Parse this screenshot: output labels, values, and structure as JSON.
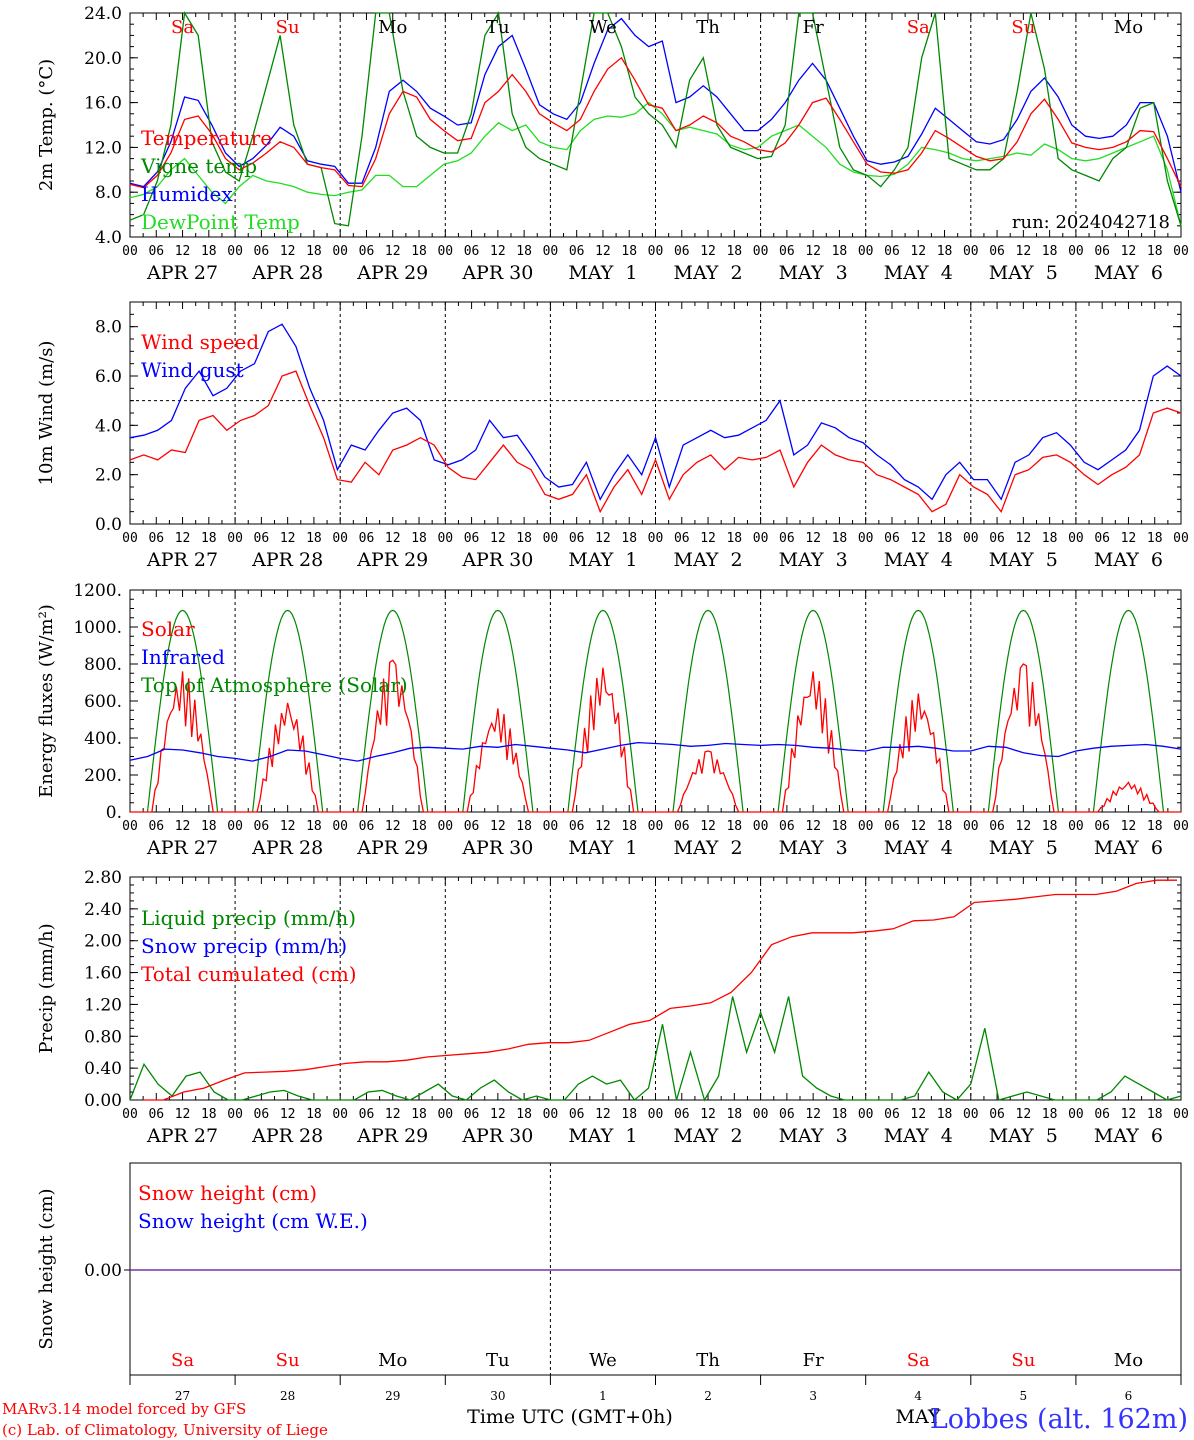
{
  "colors": {
    "red": "#ff0000",
    "green": "#008800",
    "blue": "#0000ff",
    "lightgreen": "#22dd22",
    "purple": "#7733aa"
  },
  "days": {
    "weekdays": [
      "Sa",
      "Su",
      "Mo",
      "Tu",
      "We",
      "Th",
      "Fr",
      "Sa",
      "Su",
      "Mo"
    ],
    "weekday_colors": [
      "red",
      "red",
      "black",
      "black",
      "black",
      "black",
      "black",
      "red",
      "red",
      "black"
    ],
    "dates": [
      "APR 27",
      "APR 28",
      "APR 29",
      "APR 30",
      "MAY  1",
      "MAY  2",
      "MAY  3",
      "MAY  4",
      "MAY  5",
      "MAY  6"
    ],
    "hour_ticks": [
      "00",
      "06",
      "12",
      "18"
    ],
    "final_tick": "00",
    "day_numbers": [
      "27",
      "28",
      "29",
      "30",
      "1",
      "2",
      "3",
      "4",
      "5",
      "6"
    ]
  },
  "footer": {
    "model": "MARv3.14 model forced by GFS",
    "lab": "(c) Lab. of Climatology, University of Liege",
    "xlabel": "Time UTC (GMT+0h)",
    "month": "MAY",
    "station": "Lobbes (alt. 162m)"
  },
  "chart_data": [
    {
      "type": "line",
      "ylabel": "2m Temp. (°C)",
      "ylim": [
        4.0,
        24.0
      ],
      "yticks": [
        "4.0",
        "8.0",
        "12.0",
        "16.0",
        "20.0",
        "24.0"
      ],
      "annotation": "run: 2024042718",
      "x_unit": "3-hourly steps from APR 27 00 UTC to MAY 7 00 UTC",
      "series": [
        {
          "name": "Temperature",
          "color": "red",
          "values": [
            8.7,
            8.4,
            9.5,
            11.5,
            14.5,
            14.8,
            13.2,
            11.0,
            10.0,
            10.6,
            11.5,
            12.5,
            12.0,
            10.5,
            10.2,
            10.0,
            8.6,
            8.5,
            11.0,
            15.0,
            17.0,
            16.5,
            14.5,
            13.5,
            12.6,
            12.8,
            16.0,
            17.0,
            18.5,
            17.0,
            15.0,
            14.2,
            13.5,
            14.5,
            17.0,
            19.0,
            20.0,
            18.0,
            15.8,
            15.5,
            13.5,
            14.0,
            14.8,
            14.2,
            13.0,
            12.5,
            11.8,
            11.6,
            12.4,
            14.0,
            16.0,
            16.4,
            14.5,
            12.5,
            10.5,
            9.8,
            9.7,
            10.0,
            11.5,
            13.5,
            12.8,
            12.0,
            11.2,
            10.8,
            11.0,
            12.5,
            15.0,
            16.3,
            14.5,
            12.4,
            12.0,
            11.8,
            12.0,
            12.5,
            13.5,
            13.4,
            11.0,
            8.5
          ]
        },
        {
          "name": "Vigne temp",
          "color": "green",
          "values": [
            5.5,
            6.0,
            9.0,
            14.0,
            24.0,
            22.0,
            12.5,
            9.8,
            9.0,
            13.0,
            17.5,
            22.0,
            14.0,
            10.5,
            10.2,
            5.2,
            5.0,
            13.0,
            24.0,
            24.0,
            17.0,
            13.0,
            12.0,
            11.5,
            11.5,
            15.0,
            22.0,
            24.0,
            15.0,
            12.0,
            11.0,
            10.5,
            10.0,
            17.0,
            24.0,
            24.0,
            21.0,
            16.5,
            15.0,
            14.0,
            12.0,
            18.0,
            20.0,
            14.0,
            12.0,
            11.5,
            11.0,
            11.2,
            14.0,
            24.0,
            24.0,
            18.0,
            12.0,
            10.0,
            9.5,
            8.5,
            10.0,
            12.0,
            20.0,
            24.0,
            11.0,
            10.5,
            10.0,
            10.0,
            11.0,
            17.0,
            24.0,
            19.0,
            11.0,
            10.0,
            9.5,
            9.0,
            11.0,
            12.0,
            15.5,
            16.0,
            9.0,
            5.0
          ]
        },
        {
          "name": "Humidex",
          "color": "blue",
          "values": [
            8.8,
            8.5,
            9.8,
            12.5,
            16.5,
            16.2,
            14.0,
            11.5,
            10.3,
            11.0,
            12.2,
            13.8,
            13.0,
            10.8,
            10.5,
            10.3,
            8.8,
            8.8,
            12.0,
            17.0,
            18.0,
            17.0,
            15.5,
            14.8,
            14.0,
            14.2,
            18.5,
            21.0,
            22.0,
            19.0,
            15.8,
            15.0,
            14.5,
            16.0,
            19.5,
            22.5,
            23.5,
            22.0,
            21.0,
            21.5,
            16.0,
            16.5,
            17.5,
            16.5,
            15.0,
            13.5,
            13.5,
            14.5,
            16.0,
            18.0,
            19.5,
            18.0,
            15.5,
            13.0,
            10.8,
            10.5,
            10.7,
            11.2,
            13.2,
            15.5,
            14.5,
            13.5,
            12.5,
            12.3,
            12.7,
            14.5,
            17.0,
            18.2,
            16.5,
            14.0,
            13.0,
            12.8,
            13.0,
            14.0,
            16.0,
            16.0,
            13.0,
            8.0
          ]
        },
        {
          "name": "DewPoint Temp",
          "color": "lightgreen",
          "values": [
            7.5,
            7.8,
            8.5,
            10.0,
            11.0,
            9.5,
            8.0,
            7.0,
            8.5,
            9.5,
            9.0,
            8.8,
            8.5,
            8.0,
            7.8,
            7.7,
            8.0,
            8.2,
            9.5,
            9.5,
            8.5,
            8.5,
            9.5,
            10.5,
            10.8,
            11.5,
            13.0,
            14.2,
            13.5,
            14.0,
            12.5,
            12.0,
            11.8,
            13.5,
            14.5,
            14.8,
            14.7,
            15.0,
            16.0,
            15.0,
            13.5,
            13.8,
            13.5,
            13.2,
            12.2,
            11.8,
            12.0,
            13.0,
            13.5,
            14.0,
            13.0,
            12.0,
            10.5,
            9.8,
            9.5,
            9.4,
            9.6,
            10.5,
            12.0,
            11.8,
            11.5,
            11.0,
            10.8,
            11.0,
            11.2,
            11.5,
            11.3,
            12.3,
            11.8,
            11.0,
            10.8,
            11.0,
            11.5,
            12.0,
            12.5,
            13.0,
            10.0,
            5.0
          ]
        }
      ]
    },
    {
      "type": "line",
      "ylabel": "10m Wind (m/s)",
      "ylim": [
        0.0,
        9.0
      ],
      "yticks": [
        "0.0",
        "2.0",
        "4.0",
        "6.0",
        "8.0"
      ],
      "reference_line": 5.0,
      "series": [
        {
          "name": "Wind speed",
          "color": "red",
          "values": [
            2.6,
            2.8,
            2.6,
            3.0,
            2.9,
            4.2,
            4.4,
            3.8,
            4.2,
            4.4,
            4.8,
            6.0,
            6.2,
            4.8,
            3.5,
            1.8,
            1.7,
            2.5,
            2.0,
            3.0,
            3.2,
            3.5,
            3.2,
            2.3,
            1.9,
            1.8,
            2.5,
            3.2,
            2.5,
            2.2,
            1.2,
            1.0,
            1.2,
            2.0,
            0.5,
            1.5,
            2.2,
            1.2,
            2.6,
            1.0,
            2.0,
            2.5,
            2.8,
            2.2,
            2.7,
            2.6,
            2.7,
            3.0,
            1.5,
            2.5,
            3.2,
            2.8,
            2.6,
            2.5,
            2.0,
            1.8,
            1.5,
            1.2,
            0.5,
            0.8,
            2.0,
            1.5,
            1.2,
            0.5,
            2.0,
            2.2,
            2.7,
            2.8,
            2.5,
            2.0,
            1.6,
            2.0,
            2.3,
            2.8,
            4.5,
            4.7,
            4.5
          ]
        },
        {
          "name": "Wind gust",
          "color": "blue",
          "values": [
            3.5,
            3.6,
            3.8,
            4.2,
            5.5,
            6.2,
            5.2,
            5.5,
            6.2,
            6.5,
            7.8,
            8.1,
            7.2,
            5.5,
            4.2,
            2.2,
            3.2,
            3.0,
            3.8,
            4.5,
            4.7,
            4.2,
            2.6,
            2.4,
            2.6,
            3.0,
            4.2,
            3.5,
            3.6,
            2.8,
            1.9,
            1.5,
            1.6,
            2.5,
            1.0,
            2.0,
            2.8,
            2.0,
            3.5,
            1.5,
            3.2,
            3.5,
            3.8,
            3.5,
            3.6,
            3.9,
            4.2,
            5.0,
            2.8,
            3.2,
            4.1,
            3.9,
            3.5,
            3.3,
            2.8,
            2.4,
            1.8,
            1.5,
            1.0,
            2.0,
            2.5,
            1.8,
            1.8,
            1.0,
            2.5,
            2.8,
            3.5,
            3.7,
            3.2,
            2.5,
            2.2,
            2.6,
            3.0,
            3.8,
            6.0,
            6.4,
            6.0
          ]
        }
      ]
    },
    {
      "type": "line",
      "ylabel": "Energy fluxes (W/m²)",
      "ylim": [
        0,
        1200
      ],
      "yticks": [
        "0.",
        "200.",
        "400.",
        "600.",
        "800.",
        "1000.",
        "1200."
      ],
      "series": [
        {
          "name": "Solar",
          "color": "red",
          "day_peaks": [
            760,
            590,
            820,
            560,
            780,
            330,
            760,
            640,
            800,
            160
          ]
        },
        {
          "name": "Infrared",
          "color": "blue",
          "values": [
            280,
            300,
            340,
            335,
            320,
            300,
            290,
            275,
            300,
            335,
            330,
            310,
            290,
            275,
            300,
            320,
            345,
            350,
            345,
            340,
            355,
            350,
            365,
            355,
            345,
            335,
            320,
            340,
            360,
            375,
            370,
            365,
            355,
            360,
            370,
            365,
            360,
            365,
            360,
            350,
            345,
            335,
            330,
            350,
            350,
            355,
            345,
            330,
            330,
            355,
            350,
            320,
            305,
            300,
            330,
            345,
            355,
            360,
            365,
            355,
            340
          ]
        },
        {
          "name": "Top of Atmosphere (Solar)",
          "color": "green",
          "peak": 1090
        }
      ]
    },
    {
      "type": "line",
      "ylabel": "Precip (mm/h)",
      "ylim": [
        0.0,
        2.8
      ],
      "yticks": [
        "0.00",
        "0.40",
        "0.80",
        "1.20",
        "1.60",
        "2.00",
        "2.40",
        "2.80"
      ],
      "series": [
        {
          "name": "Liquid precip (mm/h)",
          "color": "green",
          "values": [
            0,
            0.45,
            0.2,
            0.05,
            0.3,
            0.35,
            0.1,
            0,
            0,
            0.05,
            0.1,
            0.12,
            0.05,
            0,
            0,
            0,
            0,
            0.1,
            0.12,
            0.05,
            0,
            0.1,
            0.2,
            0.05,
            0,
            0.15,
            0.25,
            0.1,
            0,
            0.05,
            0,
            0,
            0.2,
            0.3,
            0.2,
            0.25,
            0,
            0.15,
            0.95,
            0,
            0.6,
            0,
            0.3,
            1.3,
            0.6,
            1.1,
            0.6,
            1.3,
            0.3,
            0.15,
            0.05,
            0,
            0,
            0,
            0,
            0,
            0.05,
            0.35,
            0.1,
            0,
            0.2,
            0.9,
            0,
            0.05,
            0.1,
            0.05,
            0,
            0,
            0,
            0,
            0.1,
            0.3,
            0.2,
            0.1,
            0,
            0.05
          ]
        },
        {
          "name": "Snow precip (mm/h)",
          "color": "blue",
          "values": []
        },
        {
          "name": "Total cumulated (cm)",
          "color": "red",
          "values": [
            0,
            0,
            0.1,
            0.15,
            0.25,
            0.34,
            0.35,
            0.36,
            0.38,
            0.42,
            0.46,
            0.48,
            0.48,
            0.5,
            0.54,
            0.56,
            0.58,
            0.6,
            0.64,
            0.7,
            0.72,
            0.72,
            0.75,
            0.85,
            0.95,
            1.0,
            1.15,
            1.18,
            1.22,
            1.35,
            1.6,
            1.95,
            2.05,
            2.1,
            2.1,
            2.1,
            2.12,
            2.15,
            2.25,
            2.26,
            2.3,
            2.48,
            2.5,
            2.52,
            2.55,
            2.58,
            2.58,
            2.58,
            2.62,
            2.72,
            2.76,
            2.76
          ]
        }
      ]
    },
    {
      "type": "line",
      "ylabel": "Snow height (cm)",
      "yticks": [
        "0.00"
      ],
      "series": [
        {
          "name": "Snow height (cm)",
          "color": "red",
          "values": [
            0.0,
            0.0
          ]
        },
        {
          "name": "Snow height (cm W.E.)",
          "color": "blue",
          "values": [
            0.0,
            0.0
          ]
        }
      ]
    }
  ]
}
